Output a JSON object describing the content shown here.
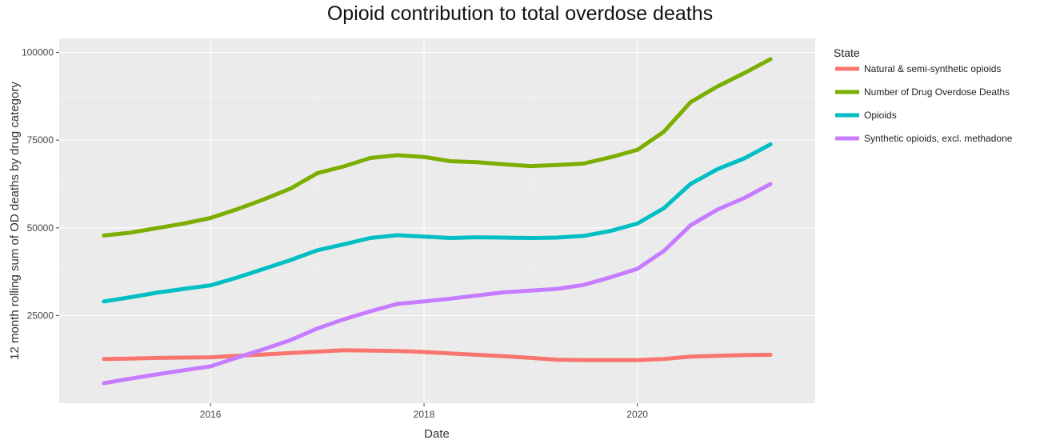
{
  "chart_data": {
    "type": "line",
    "title": "Opioid contribution to total overdose deaths",
    "xlabel": "Date",
    "ylabel": "12 month rolling sum of OD deaths by drug category",
    "legend_title": "State",
    "legend_position": "right",
    "grid": true,
    "xlim": [
      "2014-08-01",
      "2021-09-01"
    ],
    "ylim": [
      0,
      104000
    ],
    "x_ticks": [
      {
        "value": "2016-01-01",
        "label": "2016"
      },
      {
        "value": "2018-01-01",
        "label": "2018"
      },
      {
        "value": "2020-01-01",
        "label": "2020"
      }
    ],
    "y_ticks": [
      {
        "value": 25000,
        "label": "25000"
      },
      {
        "value": 50000,
        "label": "50000"
      },
      {
        "value": 75000,
        "label": "75000"
      },
      {
        "value": 100000,
        "label": "100000"
      }
    ],
    "series": [
      {
        "name": "Natural & semi-synthetic opioids",
        "color": "#F8766D",
        "points": [
          [
            "2015-01-01",
            12600
          ],
          [
            "2015-04-01",
            12700
          ],
          [
            "2015-07-01",
            12900
          ],
          [
            "2015-10-01",
            13000
          ],
          [
            "2016-01-01",
            13100
          ],
          [
            "2016-04-01",
            13500
          ],
          [
            "2016-07-01",
            13900
          ],
          [
            "2016-10-01",
            14300
          ],
          [
            "2017-01-01",
            14700
          ],
          [
            "2017-04-01",
            15100
          ],
          [
            "2017-07-01",
            15000
          ],
          [
            "2017-10-01",
            14900
          ],
          [
            "2018-01-01",
            14600
          ],
          [
            "2018-04-01",
            14200
          ],
          [
            "2018-07-01",
            13800
          ],
          [
            "2018-10-01",
            13400
          ],
          [
            "2019-01-01",
            12900
          ],
          [
            "2019-04-01",
            12400
          ],
          [
            "2019-07-01",
            12300
          ],
          [
            "2019-10-01",
            12300
          ],
          [
            "2020-01-01",
            12300
          ],
          [
            "2020-04-01",
            12600
          ],
          [
            "2020-07-01",
            13300
          ],
          [
            "2020-10-01",
            13500
          ],
          [
            "2021-01-01",
            13700
          ],
          [
            "2021-04-01",
            13800
          ]
        ]
      },
      {
        "name": "Number of Drug Overdose Deaths",
        "color": "#7CAE00",
        "points": [
          [
            "2015-01-01",
            47800
          ],
          [
            "2015-04-01",
            48600
          ],
          [
            "2015-07-01",
            49900
          ],
          [
            "2015-10-01",
            51200
          ],
          [
            "2016-01-01",
            52800
          ],
          [
            "2016-04-01",
            55300
          ],
          [
            "2016-07-01",
            58100
          ],
          [
            "2016-10-01",
            61200
          ],
          [
            "2017-01-01",
            65600
          ],
          [
            "2017-04-01",
            67500
          ],
          [
            "2017-07-01",
            69900
          ],
          [
            "2017-10-01",
            70700
          ],
          [
            "2018-01-01",
            70200
          ],
          [
            "2018-04-01",
            69000
          ],
          [
            "2018-07-01",
            68700
          ],
          [
            "2018-10-01",
            68100
          ],
          [
            "2019-01-01",
            67600
          ],
          [
            "2019-04-01",
            67900
          ],
          [
            "2019-07-01",
            68300
          ],
          [
            "2019-10-01",
            70100
          ],
          [
            "2020-01-01",
            72200
          ],
          [
            "2020-04-01",
            77400
          ],
          [
            "2020-07-01",
            85800
          ],
          [
            "2020-10-01",
            90300
          ],
          [
            "2021-01-01",
            94100
          ],
          [
            "2021-04-01",
            98100
          ]
        ]
      },
      {
        "name": "Opioids",
        "color": "#00BFC4",
        "points": [
          [
            "2015-01-01",
            29000
          ],
          [
            "2015-04-01",
            30200
          ],
          [
            "2015-07-01",
            31500
          ],
          [
            "2015-10-01",
            32600
          ],
          [
            "2016-01-01",
            33600
          ],
          [
            "2016-04-01",
            35800
          ],
          [
            "2016-07-01",
            38300
          ],
          [
            "2016-10-01",
            40800
          ],
          [
            "2017-01-01",
            43600
          ],
          [
            "2017-04-01",
            45300
          ],
          [
            "2017-07-01",
            47100
          ],
          [
            "2017-10-01",
            47900
          ],
          [
            "2018-01-01",
            47500
          ],
          [
            "2018-04-01",
            47100
          ],
          [
            "2018-07-01",
            47300
          ],
          [
            "2018-10-01",
            47200
          ],
          [
            "2019-01-01",
            47100
          ],
          [
            "2019-04-01",
            47200
          ],
          [
            "2019-07-01",
            47700
          ],
          [
            "2019-10-01",
            49100
          ],
          [
            "2020-01-01",
            51200
          ],
          [
            "2020-04-01",
            55600
          ],
          [
            "2020-07-01",
            62500
          ],
          [
            "2020-10-01",
            66700
          ],
          [
            "2021-01-01",
            69800
          ],
          [
            "2021-04-01",
            73800
          ]
        ]
      },
      {
        "name": "Synthetic opioids, excl. methadone",
        "color": "#C77CFF",
        "points": [
          [
            "2015-01-01",
            5700
          ],
          [
            "2015-04-01",
            7000
          ],
          [
            "2015-07-01",
            8200
          ],
          [
            "2015-10-01",
            9400
          ],
          [
            "2016-01-01",
            10500
          ],
          [
            "2016-04-01",
            13000
          ],
          [
            "2016-07-01",
            15400
          ],
          [
            "2016-10-01",
            18000
          ],
          [
            "2017-01-01",
            21300
          ],
          [
            "2017-04-01",
            23900
          ],
          [
            "2017-07-01",
            26200
          ],
          [
            "2017-10-01",
            28300
          ],
          [
            "2018-01-01",
            29000
          ],
          [
            "2018-04-01",
            29800
          ],
          [
            "2018-07-01",
            30700
          ],
          [
            "2018-10-01",
            31600
          ],
          [
            "2019-01-01",
            32100
          ],
          [
            "2019-04-01",
            32600
          ],
          [
            "2019-07-01",
            33700
          ],
          [
            "2019-10-01",
            35900
          ],
          [
            "2020-01-01",
            38300
          ],
          [
            "2020-04-01",
            43400
          ],
          [
            "2020-07-01",
            50700
          ],
          [
            "2020-10-01",
            55200
          ],
          [
            "2021-01-01",
            58500
          ],
          [
            "2021-04-01",
            62500
          ]
        ]
      }
    ]
  }
}
